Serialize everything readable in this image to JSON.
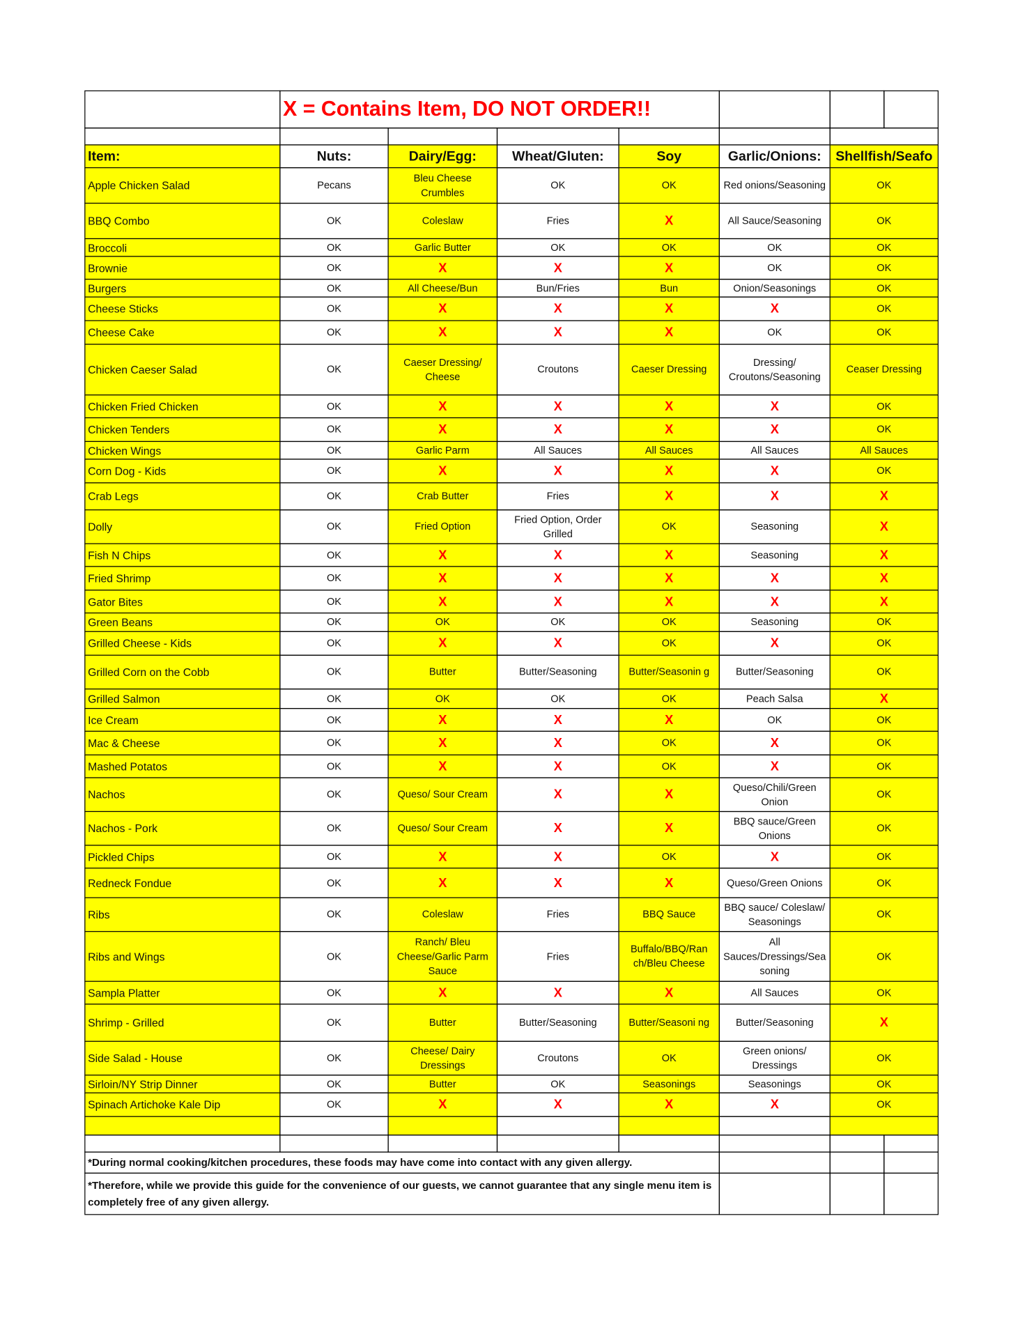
{
  "table": {
    "title": "X = Contains Item, DO NOT ORDER!!",
    "headers": [
      "Item:",
      "Nuts:",
      "Dairy/Egg:",
      "Wheat/Gluten:",
      "Soy",
      "Garlic/Onions:",
      "Shellfish/Seafo"
    ],
    "rows": [
      [
        "Apple Chicken Salad",
        "Pecans",
        "Bleu Cheese Crumbles",
        "OK",
        "OK",
        "Red onions/Seasoning",
        "OK"
      ],
      [
        "BBQ Combo",
        "OK",
        "Coleslaw",
        "Fries",
        "X",
        "All Sauce/Seasoning",
        "OK"
      ],
      [
        "Broccoli",
        "OK",
        "Garlic Butter",
        "OK",
        "OK",
        "OK",
        "OK"
      ],
      [
        "Brownie",
        "OK",
        "X",
        "X",
        "X",
        "OK",
        "OK"
      ],
      [
        "Burgers",
        "OK",
        "All Cheese/Bun",
        "Bun/Fries",
        "Bun",
        "Onion/Seasonings",
        "OK"
      ],
      [
        "Cheese Sticks",
        "OK",
        "X",
        "X",
        "X",
        "X",
        "OK"
      ],
      [
        "Cheese Cake",
        "OK",
        "X",
        "X",
        "X",
        "OK",
        "OK"
      ],
      [
        "Chicken Caeser Salad",
        "OK",
        "Caeser Dressing/ Cheese",
        "Croutons",
        "Caeser Dressing",
        "Dressing/ Croutons/Seasoning",
        "Ceaser Dressing"
      ],
      [
        "Chicken Fried Chicken",
        "OK",
        "X",
        "X",
        "X",
        "X",
        "OK"
      ],
      [
        "Chicken Tenders",
        "OK",
        "X",
        "X",
        "X",
        "X",
        "OK"
      ],
      [
        "Chicken Wings",
        "OK",
        "Garlic Parm",
        "All Sauces",
        "All Sauces",
        "All Sauces",
        "All Sauces"
      ],
      [
        "Corn Dog - Kids",
        "OK",
        "X",
        "X",
        "X",
        "X",
        "OK"
      ],
      [
        "Crab Legs",
        "OK",
        "Crab Butter",
        "Fries",
        "X",
        "X",
        "X"
      ],
      [
        "Dolly",
        "OK",
        "Fried Option",
        "Fried Option, Order Grilled",
        "OK",
        "Seasoning",
        "X"
      ],
      [
        "Fish N Chips",
        "OK",
        "X",
        "X",
        "X",
        "Seasoning",
        "X"
      ],
      [
        "Fried Shrimp",
        "OK",
        "X",
        "X",
        "X",
        "X",
        "X"
      ],
      [
        "Gator Bites",
        "OK",
        "X",
        "X",
        "X",
        "X",
        "X"
      ],
      [
        "Green Beans",
        "OK",
        "OK",
        "OK",
        "OK",
        "Seasoning",
        "OK"
      ],
      [
        "Grilled Cheese - Kids",
        "OK",
        "X",
        "X",
        "OK",
        "X",
        "OK"
      ],
      [
        "Grilled Corn on the Cobb",
        "OK",
        "Butter",
        "Butter/Seasoning",
        "Butter/Seasonin g",
        "Butter/Seasoning",
        "OK"
      ],
      [
        "Grilled Salmon",
        "OK",
        "OK",
        "OK",
        "OK",
        "Peach Salsa",
        "X"
      ],
      [
        "Ice Cream",
        "OK",
        "X",
        "X",
        "X",
        "OK",
        "OK"
      ],
      [
        "Mac & Cheese",
        "OK",
        "X",
        "X",
        "OK",
        "X",
        "OK"
      ],
      [
        "Mashed Potatos",
        "OK",
        "X",
        "X",
        "OK",
        "X",
        "OK"
      ],
      [
        "Nachos",
        "OK",
        "Queso/ Sour Cream",
        "X",
        "X",
        "Queso/Chili/Green Onion",
        "OK"
      ],
      [
        "Nachos - Pork",
        "OK",
        "Queso/ Sour Cream",
        "X",
        "X",
        "BBQ sauce/Green Onions",
        "OK"
      ],
      [
        "Pickled Chips",
        "OK",
        "X",
        "X",
        "OK",
        "X",
        "OK"
      ],
      [
        "Redneck Fondue",
        "OK",
        "X",
        "X",
        "X",
        "Queso/Green Onions",
        "OK"
      ],
      [
        "Ribs",
        "OK",
        "Coleslaw",
        "Fries",
        "BBQ Sauce",
        "BBQ sauce/ Coleslaw/ Seasonings",
        "OK"
      ],
      [
        "Ribs and Wings",
        "OK",
        "Ranch/ Bleu Cheese/Garlic Parm Sauce",
        "Fries",
        "Buffalo/BBQ/Ran ch/Bleu Cheese",
        "All Sauces/Dressings/Sea soning",
        "OK"
      ],
      [
        "Sampla Platter",
        "OK",
        "X",
        "X",
        "X",
        "All Sauces",
        "OK"
      ],
      [
        "Shrimp - Grilled",
        "OK",
        "Butter",
        "Butter/Seasoning",
        "Butter/Seasoni ng",
        "Butter/Seasoning",
        "X"
      ],
      [
        "Side Salad - House",
        "OK",
        "Cheese/ Dairy Dressings",
        "Croutons",
        "OK",
        "Green onions/ Dressings",
        "OK"
      ],
      [
        "Sirloin/NY Strip Dinner",
        "OK",
        "Butter",
        "OK",
        "Seasonings",
        "Seasonings",
        "OK"
      ],
      [
        "Spinach Artichoke Kale Dip",
        "OK",
        "X",
        "X",
        "X",
        "X",
        "OK"
      ]
    ],
    "notes": [
      "*During normal cooking/kitchen procedures, these foods may have come into contact with any given allergy.",
      "*Therefore, while we provide this guide for the convenience of our guests, we cannot guarantee that any single menu item is completely free of any given allergy."
    ]
  }
}
